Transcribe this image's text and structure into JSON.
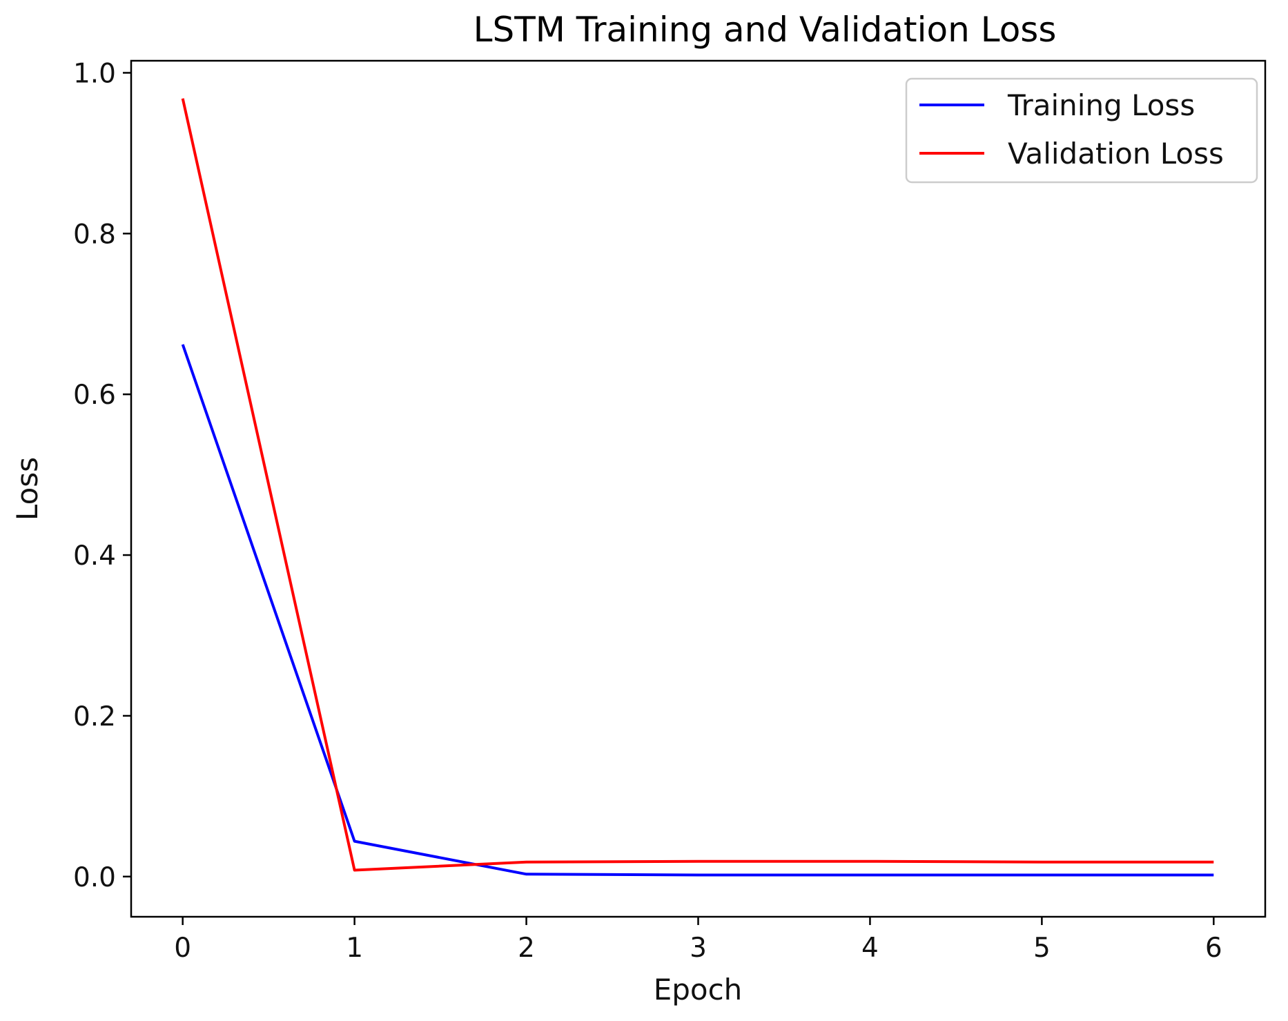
{
  "chart_data": {
    "type": "line",
    "title": "LSTM Training and Validation Loss",
    "xlabel": "Epoch",
    "ylabel": "Loss",
    "xlim": [
      -0.3,
      6.3
    ],
    "ylim": [
      -0.05,
      1.015
    ],
    "xticks": [
      0,
      1,
      2,
      3,
      4,
      5,
      6
    ],
    "xtick_labels": [
      "0",
      "1",
      "2",
      "3",
      "4",
      "5",
      "6"
    ],
    "yticks": [
      0.0,
      0.2,
      0.4,
      0.6,
      0.8,
      1.0
    ],
    "ytick_labels": [
      "0.0",
      "0.2",
      "0.4",
      "0.6",
      "0.8",
      "1.0"
    ],
    "x": [
      0,
      1,
      2,
      3,
      4,
      5,
      6
    ],
    "series": [
      {
        "name": "Training Loss",
        "color": "#0000ff",
        "values": [
          0.662,
          0.044,
          0.003,
          0.002,
          0.002,
          0.002,
          0.002
        ]
      },
      {
        "name": "Validation Loss",
        "color": "#ff0000",
        "values": [
          0.968,
          0.008,
          0.018,
          0.019,
          0.019,
          0.018,
          0.018
        ]
      }
    ],
    "legend": "top-right",
    "grid": false
  }
}
